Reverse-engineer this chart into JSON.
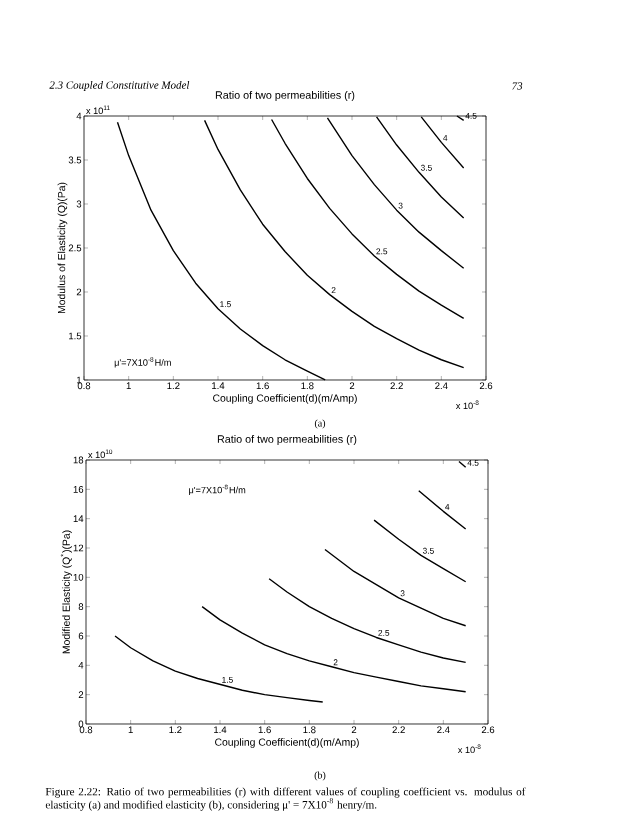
{
  "chart_data": [
    {
      "type": "line",
      "title": "Ratio of two permeabilities (r)",
      "xlabel": "Coupling Coefficient(d)(m/Amp)",
      "ylabel": "Modulus of Elasticity (Q)(Pa)",
      "annotations": [
        "2.3 Coupled Constitutive Model",
        "73",
        "x 10$^{11}$",
        "x 10$^{-8}$",
        "μ'=7X10$^{-8}$H/m",
        "(a)"
      ],
      "xlim": [
        0.8,
        2.6
      ],
      "xticks": [
        0.8,
        1,
        1.2,
        1.4,
        1.6,
        1.8,
        2,
        2.2,
        2.4,
        2.6
      ],
      "ylim": [
        1,
        4
      ],
      "yticks": [
        1,
        1.5,
        2,
        2.5,
        3,
        3.5,
        4
      ],
      "line_style": "solid",
      "series": [
        {
          "name": "1.5",
          "color": "#000000",
          "x": [
            0.95,
            1.0,
            1.1,
            1.2,
            1.3,
            1.4,
            1.5,
            1.6,
            1.7,
            1.8,
            1.88
          ],
          "values": [
            3.93,
            3.55,
            2.93,
            2.47,
            2.1,
            1.81,
            1.58,
            1.39,
            1.23,
            1.1,
            1.0
          ]
        },
        {
          "name": "2",
          "color": "#000000",
          "x": [
            1.34,
            1.4,
            1.5,
            1.6,
            1.7,
            1.8,
            1.9,
            2.0,
            2.1,
            2.2,
            2.3,
            2.4,
            2.5
          ],
          "values": [
            3.95,
            3.62,
            3.16,
            2.77,
            2.46,
            2.19,
            1.97,
            1.78,
            1.61,
            1.47,
            1.34,
            1.23,
            1.14
          ]
        },
        {
          "name": "2.5",
          "color": "#000000",
          "x": [
            1.64,
            1.7,
            1.8,
            1.9,
            2.0,
            2.1,
            2.2,
            2.3,
            2.4,
            2.5
          ],
          "values": [
            3.96,
            3.69,
            3.29,
            2.95,
            2.66,
            2.41,
            2.2,
            2.01,
            1.85,
            1.7
          ]
        },
        {
          "name": "3",
          "color": "#000000",
          "x": [
            1.89,
            2.0,
            2.1,
            2.2,
            2.3,
            2.4,
            2.5
          ],
          "values": [
            3.98,
            3.55,
            3.22,
            2.93,
            2.68,
            2.47,
            2.27
          ]
        },
        {
          "name": "3.5",
          "color": "#000000",
          "x": [
            2.11,
            2.2,
            2.3,
            2.4,
            2.5
          ],
          "values": [
            3.99,
            3.67,
            3.36,
            3.08,
            2.84
          ]
        },
        {
          "name": "4",
          "color": "#000000",
          "x": [
            2.31,
            2.4,
            2.5
          ],
          "values": [
            3.99,
            3.7,
            3.41
          ]
        },
        {
          "name": "4.5",
          "color": "#000000",
          "x": [
            2.47,
            2.5
          ],
          "values": [
            4.0,
            3.95
          ]
        }
      ]
    },
    {
      "type": "line",
      "title": "Ratio of two permeabilities (r)",
      "xlabel": "Coupling Coefficient(d)(m/Amp)",
      "ylabel": "Modified Elasticity (Q$^{*}$)(Pa)",
      "annotations": [
        "x 10$^{10}$",
        "x 10$^{-8}$",
        "μ'=7X10$^{-8}$H/m",
        "(b)",
        "Figure 2.22: Ratio of two permeabilities (r) with different values of coupling coefficient vs. modulus of elasticity (a) and modified elasticity (b), considering μ' = 7X10$^{-8}$ henry/m."
      ],
      "xlim": [
        0.8,
        2.6
      ],
      "xticks": [
        0.8,
        1,
        1.2,
        1.4,
        1.6,
        1.8,
        2,
        2.2,
        2.4,
        2.6
      ],
      "ylim": [
        0,
        18
      ],
      "yticks": [
        0,
        2,
        4,
        6,
        8,
        10,
        12,
        14,
        16,
        18
      ],
      "line_style": "solid",
      "series": [
        {
          "name": "1.5",
          "color": "#000000",
          "x": [
            0.93,
            1.0,
            1.1,
            1.2,
            1.3,
            1.4,
            1.5,
            1.6,
            1.7,
            1.8,
            1.86
          ],
          "values": [
            6.0,
            5.2,
            4.3,
            3.6,
            3.1,
            2.7,
            2.3,
            2.0,
            1.8,
            1.6,
            1.5
          ]
        },
        {
          "name": "2",
          "color": "#000000",
          "x": [
            1.32,
            1.4,
            1.5,
            1.6,
            1.7,
            1.8,
            1.9,
            2.0,
            2.1,
            2.2,
            2.3,
            2.4,
            2.5
          ],
          "values": [
            8.0,
            7.1,
            6.2,
            5.4,
            4.8,
            4.3,
            3.9,
            3.5,
            3.2,
            2.9,
            2.6,
            2.4,
            2.2
          ]
        },
        {
          "name": "2.5",
          "color": "#000000",
          "x": [
            1.62,
            1.7,
            1.8,
            1.9,
            2.0,
            2.1,
            2.2,
            2.3,
            2.4,
            2.5
          ],
          "values": [
            9.9,
            9.0,
            8.0,
            7.2,
            6.5,
            5.9,
            5.4,
            4.9,
            4.5,
            4.2
          ]
        },
        {
          "name": "3",
          "color": "#000000",
          "x": [
            1.87,
            2.0,
            2.1,
            2.2,
            2.3,
            2.4,
            2.5
          ],
          "values": [
            11.9,
            10.4,
            9.5,
            8.6,
            7.9,
            7.2,
            6.7
          ]
        },
        {
          "name": "3.5",
          "color": "#000000",
          "x": [
            2.09,
            2.2,
            2.3,
            2.4,
            2.5
          ],
          "values": [
            13.9,
            12.6,
            11.5,
            10.6,
            9.7
          ]
        },
        {
          "name": "4",
          "color": "#000000",
          "x": [
            2.29,
            2.4,
            2.5
          ],
          "values": [
            15.9,
            14.5,
            13.3
          ]
        },
        {
          "name": "4.5",
          "color": "#000000",
          "x": [
            2.47,
            2.5
          ],
          "values": [
            17.9,
            17.5
          ]
        }
      ]
    }
  ]
}
